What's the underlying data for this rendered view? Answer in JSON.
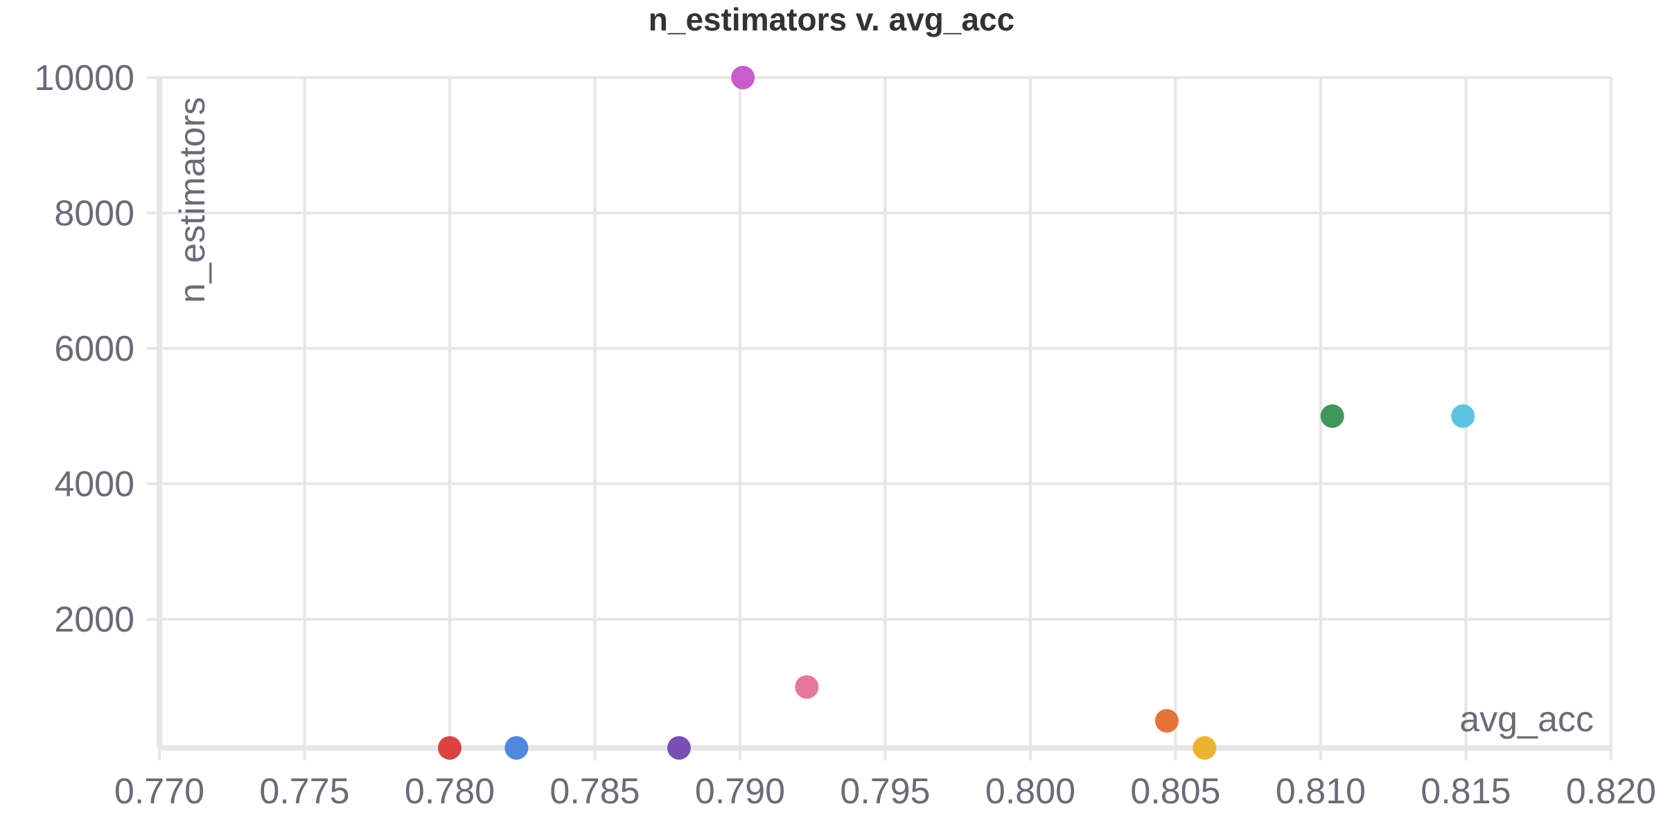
{
  "chart_data": {
    "type": "scatter",
    "title": "n_estimators v. avg_acc",
    "xlabel": "avg_acc",
    "ylabel": "n_estimators",
    "xlim": [
      0.77,
      0.82
    ],
    "ylim": [
      100,
      10000
    ],
    "x_ticks": [
      "0.770",
      "0.775",
      "0.780",
      "0.785",
      "0.790",
      "0.795",
      "0.800",
      "0.805",
      "0.810",
      "0.815",
      "0.820"
    ],
    "y_ticks": [
      "2000",
      "4000",
      "6000",
      "8000",
      "10000"
    ],
    "grid": true,
    "legend": "none",
    "points": [
      {
        "x": 0.78,
        "y": 100,
        "color": "#db4343"
      },
      {
        "x": 0.7823,
        "y": 100,
        "color": "#4e88e0"
      },
      {
        "x": 0.7879,
        "y": 100,
        "color": "#7a4fb5"
      },
      {
        "x": 0.7901,
        "y": 10000,
        "color": "#c95dcc"
      },
      {
        "x": 0.7923,
        "y": 1000,
        "color": "#e6789d"
      },
      {
        "x": 0.8047,
        "y": 500,
        "color": "#e6733a"
      },
      {
        "x": 0.806,
        "y": 100,
        "color": "#ecb42e"
      },
      {
        "x": 0.8104,
        "y": 5000,
        "color": "#3f975a"
      },
      {
        "x": 0.8149,
        "y": 5000,
        "color": "#5bc4e0"
      }
    ]
  }
}
